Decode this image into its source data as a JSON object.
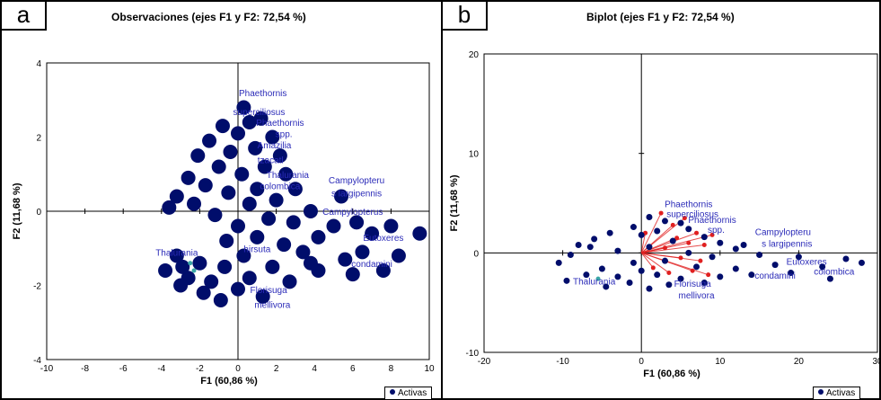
{
  "chart_data": [
    {
      "id": "a",
      "type": "scatter",
      "panel_label": "a",
      "title": "Observaciones (ejes F1 y F2: 72,54 %)",
      "xlabel": "F1 (60,86 %)",
      "ylabel": "F2 (11,68 %)",
      "xlim": [
        -10,
        10
      ],
      "ylim": [
        -4,
        4
      ],
      "xticks": [
        -10,
        -8,
        -6,
        -4,
        -2,
        0,
        2,
        4,
        6,
        8,
        10
      ],
      "yticks": [
        -4,
        -2,
        0,
        2,
        4
      ],
      "legend": {
        "entries": [
          "Activas"
        ],
        "position": "bottom-right"
      },
      "colors": {
        "points": "#000d6b",
        "labels": "#2b2bb8",
        "highlight": "#3aa6a6"
      },
      "series": [
        {
          "name": "Activas",
          "points": [
            {
              "x": 0.3,
              "y": 2.8
            },
            {
              "x": -0.8,
              "y": 2.3
            },
            {
              "x": 0.6,
              "y": 2.4
            },
            {
              "x": 1.2,
              "y": 2.5
            },
            {
              "x": 0.0,
              "y": 2.1
            },
            {
              "x": -1.5,
              "y": 1.9
            },
            {
              "x": 1.8,
              "y": 2.0
            },
            {
              "x": 0.9,
              "y": 1.7
            },
            {
              "x": -0.4,
              "y": 1.6
            },
            {
              "x": 2.2,
              "y": 1.5
            },
            {
              "x": -2.1,
              "y": 1.5
            },
            {
              "x": 1.4,
              "y": 1.2
            },
            {
              "x": -1.0,
              "y": 1.2
            },
            {
              "x": 2.5,
              "y": 1.0
            },
            {
              "x": -2.6,
              "y": 0.9
            },
            {
              "x": 0.2,
              "y": 1.0
            },
            {
              "x": -1.7,
              "y": 0.7
            },
            {
              "x": 1.0,
              "y": 0.6
            },
            {
              "x": 3.0,
              "y": 0.6
            },
            {
              "x": -3.2,
              "y": 0.4
            },
            {
              "x": -0.5,
              "y": 0.5
            },
            {
              "x": 2.0,
              "y": 0.3
            },
            {
              "x": -2.3,
              "y": 0.2
            },
            {
              "x": 0.6,
              "y": 0.2
            },
            {
              "x": -3.6,
              "y": 0.1
            },
            {
              "x": 5.4,
              "y": 0.4
            },
            {
              "x": 3.8,
              "y": 0.0
            },
            {
              "x": -1.2,
              "y": -0.1
            },
            {
              "x": 1.6,
              "y": -0.2
            },
            {
              "x": 0.0,
              "y": -0.4
            },
            {
              "x": 2.9,
              "y": -0.3
            },
            {
              "x": 5.0,
              "y": -0.4
            },
            {
              "x": 6.2,
              "y": -0.3
            },
            {
              "x": 8.0,
              "y": -0.4
            },
            {
              "x": 9.5,
              "y": -0.6
            },
            {
              "x": 7.0,
              "y": -0.6
            },
            {
              "x": 4.2,
              "y": -0.7
            },
            {
              "x": 1.0,
              "y": -0.7
            },
            {
              "x": -0.6,
              "y": -0.8
            },
            {
              "x": 2.4,
              "y": -0.9
            },
            {
              "x": 6.5,
              "y": -1.1
            },
            {
              "x": 8.4,
              "y": -1.2
            },
            {
              "x": 5.6,
              "y": -1.3
            },
            {
              "x": 3.4,
              "y": -1.1
            },
            {
              "x": 0.3,
              "y": -1.2
            },
            {
              "x": -3.2,
              "y": -1.2
            },
            {
              "x": -2.0,
              "y": -1.4
            },
            {
              "x": -0.7,
              "y": -1.5
            },
            {
              "x": 1.8,
              "y": -1.5
            },
            {
              "x": 4.2,
              "y": -1.6
            },
            {
              "x": 6.0,
              "y": -1.7
            },
            {
              "x": 7.6,
              "y": -1.6
            },
            {
              "x": -3.8,
              "y": -1.6
            },
            {
              "x": -2.6,
              "y": -1.8
            },
            {
              "x": -1.4,
              "y": -1.9
            },
            {
              "x": 0.6,
              "y": -1.8
            },
            {
              "x": 2.7,
              "y": -1.9
            },
            {
              "x": -3.0,
              "y": -2.0
            },
            {
              "x": -1.8,
              "y": -2.2
            },
            {
              "x": 0.0,
              "y": -2.1
            },
            {
              "x": 1.3,
              "y": -2.3
            },
            {
              "x": -0.9,
              "y": -2.4
            },
            {
              "x": 3.8,
              "y": -1.4
            },
            {
              "x": -2.9,
              "y": -1.5
            }
          ]
        }
      ],
      "highlight_points": [
        {
          "x": -2.5,
          "y": -1.4
        },
        {
          "x": -2.3,
          "y": -1.6
        }
      ],
      "point_labels": [
        {
          "text": "Phaethornis",
          "x": 1.3,
          "y": 3.1
        },
        {
          "text": "superciliosus",
          "x": 1.1,
          "y": 2.6
        },
        {
          "text": "Phaethornis",
          "x": 2.2,
          "y": 2.3
        },
        {
          "text": "spp.",
          "x": 2.4,
          "y": 2.0
        },
        {
          "text": "Amazilia",
          "x": 1.9,
          "y": 1.7
        },
        {
          "text": "tzacatl",
          "x": 1.7,
          "y": 1.3
        },
        {
          "text": "Thalurania",
          "x": 2.6,
          "y": 0.9
        },
        {
          "text": "colombica",
          "x": 2.2,
          "y": 0.6
        },
        {
          "text": "Campylopteru",
          "x": 6.2,
          "y": 0.75
        },
        {
          "text": "s largipennis",
          "x": 6.2,
          "y": 0.4
        },
        {
          "text": "Campylopterus",
          "x": 6.0,
          "y": -0.1
        },
        {
          "text": "Eutoxeres",
          "x": 7.6,
          "y": -0.8
        },
        {
          "text": "condamini",
          "x": 7.0,
          "y": -1.5
        },
        {
          "text": "hirsuta",
          "x": 1.0,
          "y": -1.1
        },
        {
          "text": "Thalurania",
          "x": -3.2,
          "y": -1.2
        },
        {
          "text": "Florisuga",
          "x": 1.6,
          "y": -2.2
        },
        {
          "text": "mellivora",
          "x": 1.8,
          "y": -2.6
        }
      ]
    },
    {
      "id": "b",
      "type": "scatter",
      "panel_label": "b",
      "title": "Biplot (ejes F1 y F2: 72,54 %)",
      "xlabel": "F1 (60,86 %)",
      "ylabel": "F2 (11,68 %)",
      "xlim": [
        -20,
        30
      ],
      "ylim": [
        -10,
        20
      ],
      "xticks": [
        -20,
        -10,
        0,
        10,
        20,
        30
      ],
      "yticks": [
        -10,
        0,
        10,
        20
      ],
      "legend": {
        "entries": [
          "Activas"
        ],
        "position": "bottom-right"
      },
      "colors": {
        "points": "#000d6b",
        "labels": "#2b2bb8",
        "variables": "#e02020",
        "highlight": "#3aa6a6"
      },
      "series": [
        {
          "name": "Activas",
          "points": [
            {
              "x": 1.0,
              "y": 3.6
            },
            {
              "x": 3.0,
              "y": 3.2
            },
            {
              "x": 5.0,
              "y": 3.0
            },
            {
              "x": -1.0,
              "y": 2.6
            },
            {
              "x": 2.0,
              "y": 2.2
            },
            {
              "x": 6.0,
              "y": 2.4
            },
            {
              "x": -4.0,
              "y": 2.0
            },
            {
              "x": 8.0,
              "y": 1.6
            },
            {
              "x": 0.0,
              "y": 1.8
            },
            {
              "x": -6.0,
              "y": 1.4
            },
            {
              "x": 4.0,
              "y": 1.2
            },
            {
              "x": 10.0,
              "y": 1.0
            },
            {
              "x": -8.0,
              "y": 0.8
            },
            {
              "x": 1.0,
              "y": 0.6
            },
            {
              "x": 12.0,
              "y": 0.4
            },
            {
              "x": -3.0,
              "y": 0.2
            },
            {
              "x": 6.0,
              "y": 0.0
            },
            {
              "x": 15.0,
              "y": -0.2
            },
            {
              "x": -9.0,
              "y": -0.2
            },
            {
              "x": 9.0,
              "y": -0.4
            },
            {
              "x": 20.0,
              "y": -0.4
            },
            {
              "x": 26.0,
              "y": -0.6
            },
            {
              "x": 3.0,
              "y": -0.8
            },
            {
              "x": -1.0,
              "y": -1.0
            },
            {
              "x": 17.0,
              "y": -1.2
            },
            {
              "x": 23.0,
              "y": -1.4
            },
            {
              "x": 12.0,
              "y": -1.6
            },
            {
              "x": 7.0,
              "y": -1.4
            },
            {
              "x": -5.0,
              "y": -1.6
            },
            {
              "x": 0.0,
              "y": -1.8
            },
            {
              "x": -7.0,
              "y": -2.2
            },
            {
              "x": -3.0,
              "y": -2.4
            },
            {
              "x": 2.0,
              "y": -2.2
            },
            {
              "x": 5.0,
              "y": -2.6
            },
            {
              "x": 10.0,
              "y": -2.4
            },
            {
              "x": 14.0,
              "y": -2.2
            },
            {
              "x": 19.0,
              "y": -2.0
            },
            {
              "x": -9.5,
              "y": -2.8
            },
            {
              "x": -1.5,
              "y": -3.0
            },
            {
              "x": 3.5,
              "y": -3.2
            },
            {
              "x": 8.0,
              "y": -3.0
            },
            {
              "x": 24.0,
              "y": -2.6
            },
            {
              "x": -4.5,
              "y": -3.4
            },
            {
              "x": 1.0,
              "y": -3.6
            },
            {
              "x": -6.5,
              "y": 0.6
            },
            {
              "x": -10.5,
              "y": -1.0
            },
            {
              "x": 28.0,
              "y": -1.0
            },
            {
              "x": 13.0,
              "y": 0.8
            }
          ]
        },
        {
          "name": "",
          "points": [
            {
              "x": 0.5,
              "y": 2.0
            },
            {
              "x": 1.5,
              "y": -1.5
            },
            {
              "x": 2.5,
              "y": 4.0
            },
            {
              "x": 3.0,
              "y": 0.5
            },
            {
              "x": 3.5,
              "y": -2.0
            },
            {
              "x": 4.0,
              "y": 2.8
            },
            {
              "x": 4.5,
              "y": 1.5
            },
            {
              "x": 5.0,
              "y": -0.5
            },
            {
              "x": 5.5,
              "y": 3.5
            },
            {
              "x": 6.0,
              "y": 1.0
            },
            {
              "x": 6.5,
              "y": -1.8
            },
            {
              "x": 7.0,
              "y": 2.0
            },
            {
              "x": 7.5,
              "y": -0.8
            },
            {
              "x": 8.0,
              "y": 0.8
            },
            {
              "x": 8.5,
              "y": -2.2
            },
            {
              "x": 9.0,
              "y": 1.8
            }
          ]
        }
      ],
      "highlight_points": [
        {
          "x": -5.5,
          "y": -2.6
        }
      ],
      "point_labels": [
        {
          "text": "Phaethornis",
          "x": 6.0,
          "y": 4.6
        },
        {
          "text": "superciliosus",
          "x": 6.5,
          "y": 3.6
        },
        {
          "text": "Phaethornis",
          "x": 9.0,
          "y": 3.0
        },
        {
          "text": "spp.",
          "x": 9.5,
          "y": 2.0
        },
        {
          "text": "Campylopteru",
          "x": 18.0,
          "y": 1.8
        },
        {
          "text": "s largipennis",
          "x": 18.5,
          "y": 0.6
        },
        {
          "text": "Eutoxeres",
          "x": 21.0,
          "y": -1.2
        },
        {
          "text": "condamini",
          "x": 17.0,
          "y": -2.6
        },
        {
          "text": "colombica",
          "x": 24.5,
          "y": -2.2
        },
        {
          "text": "Florisuga",
          "x": 6.5,
          "y": -3.4
        },
        {
          "text": "mellivora",
          "x": 7.0,
          "y": -4.6
        },
        {
          "text": "Thalurania",
          "x": -6.0,
          "y": -3.2
        }
      ]
    }
  ]
}
